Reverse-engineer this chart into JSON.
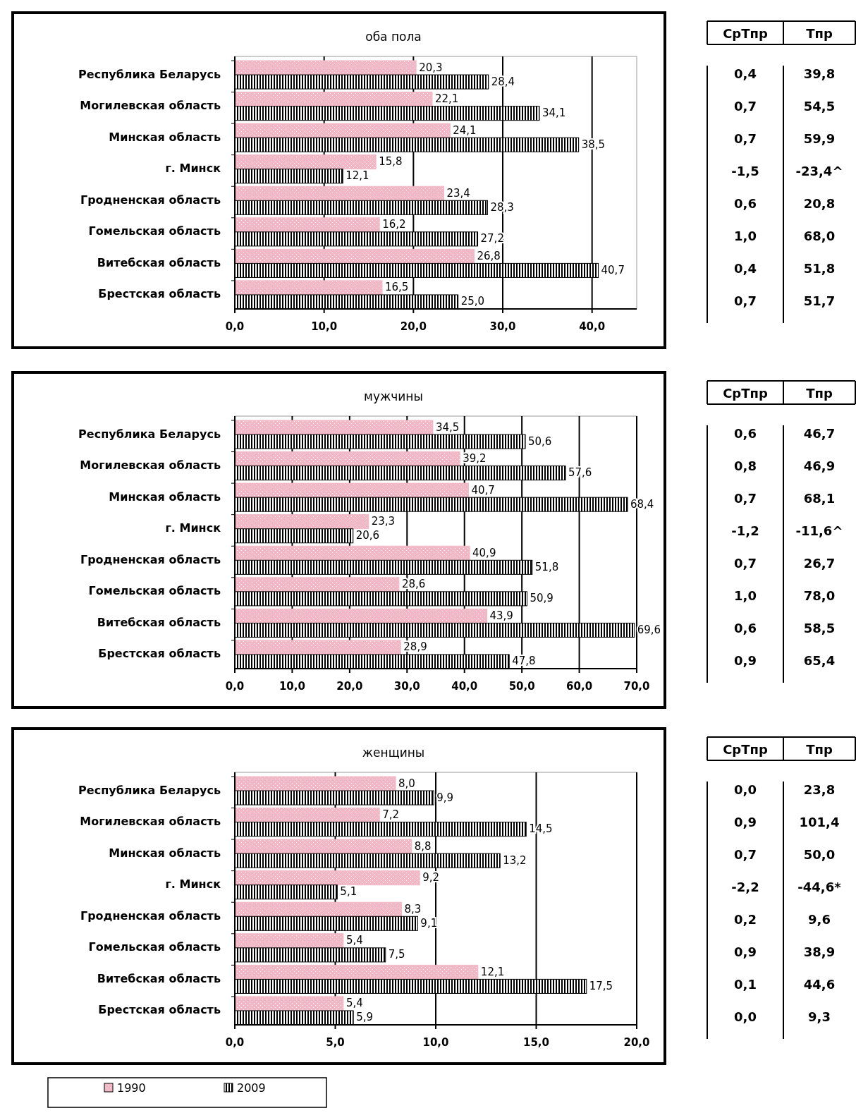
{
  "chart_data": [
    {
      "type": "bar",
      "orientation": "horizontal",
      "title": "оба пола",
      "categories": [
        "Республика Беларусь",
        "Могилевская область",
        "Минская область",
        "г. Минск",
        "Гродненская область",
        "Гомельская область",
        "Витебская область",
        "Брестская область"
      ],
      "series": [
        {
          "color": "#f2b8c6",
          "values": [
            20.3,
            22.1,
            24.1,
            15.8,
            23.4,
            16.2,
            26.8,
            16.5
          ],
          "value_labels": [
            "20,3",
            "22,1",
            "24,1",
            "15,8",
            "23,4",
            "16,2",
            "26,8",
            "16,5"
          ]
        },
        {
          "color": "#000000",
          "values": [
            28.4,
            34.1,
            38.5,
            12.1,
            28.3,
            27.2,
            40.7,
            25.0
          ],
          "value_labels": [
            "28,4",
            "34,1",
            "38,5",
            "12,1",
            "28,3",
            "27,2",
            "40,7",
            "25,0"
          ]
        }
      ],
      "xlim": [
        0,
        45
      ],
      "xticks": [
        {
          "value": 0,
          "label": "0,0"
        },
        {
          "value": 10,
          "label": "10,0"
        },
        {
          "value": 20,
          "label": "20,0"
        },
        {
          "value": 30,
          "label": "30,0"
        },
        {
          "value": 40,
          "label": "40,0"
        }
      ],
      "grid": "x",
      "legend": false
    },
    {
      "type": "other",
      "annotations": [
        "СрТпр",
        "Тпр",
        "0,4",
        "39,8",
        "0,7",
        "54,5",
        "0,7",
        "59,9",
        "-1,5",
        "-23,4^",
        "0,6",
        "20,8",
        "1,0",
        "68,0",
        "0,4",
        "51,8",
        "0,7",
        "51,7"
      ]
    },
    {
      "type": "bar",
      "orientation": "horizontal",
      "title": "мужчины",
      "categories": [
        "Республика Беларусь",
        "Могилевская область",
        "Минская область",
        "г. Минск",
        "Гродненская область",
        "Гомельская область",
        "Витебская область",
        "Брестская область"
      ],
      "series": [
        {
          "color": "#f2b8c6",
          "values": [
            34.5,
            39.2,
            40.7,
            23.3,
            40.9,
            28.6,
            43.9,
            28.9
          ],
          "value_labels": [
            "34,5",
            "39,2",
            "40,7",
            "23,3",
            "40,9",
            "28,6",
            "43,9",
            "28,9"
          ]
        },
        {
          "color": "#000000",
          "values": [
            50.6,
            57.6,
            68.4,
            20.6,
            51.8,
            50.9,
            69.6,
            47.8
          ],
          "value_labels": [
            "50,6",
            "57,6",
            "68,4",
            "20,6",
            "51,8",
            "50,9",
            "69,6",
            "47,8"
          ]
        }
      ],
      "xlim": [
        0,
        70
      ],
      "xticks": [
        {
          "value": 0,
          "label": "0,0"
        },
        {
          "value": 10,
          "label": "10,0"
        },
        {
          "value": 20,
          "label": "20,0"
        },
        {
          "value": 30,
          "label": "30,0"
        },
        {
          "value": 40,
          "label": "40,0"
        },
        {
          "value": 50,
          "label": "50,0"
        },
        {
          "value": 60,
          "label": "60,0"
        },
        {
          "value": 70,
          "label": "70,0"
        }
      ],
      "grid": "x",
      "legend": false
    },
    {
      "type": "other",
      "annotations": [
        "СрТпр",
        "Тпр",
        "0,6",
        "46,7",
        "0,8",
        "46,9",
        "0,7",
        "68,1",
        "-1,2",
        "-11,6^",
        "0,7",
        "26,7",
        "1,0",
        "78,0",
        "0,6",
        "58,5",
        "0,9",
        "65,4"
      ]
    },
    {
      "type": "bar",
      "orientation": "horizontal",
      "title": "женщины",
      "categories": [
        "Республика Беларусь",
        "Могилевская область",
        "Минская область",
        "г. Минск",
        "Гродненская область",
        "Гомельская область",
        "Витебская область",
        "Брестская область"
      ],
      "series": [
        {
          "name": "1990",
          "color": "#f2b8c6",
          "values": [
            8.0,
            7.2,
            8.8,
            9.2,
            8.3,
            5.4,
            12.1,
            5.4
          ],
          "value_labels": [
            "8,0",
            "7,2",
            "8,8",
            "9,2",
            "8,3",
            "5,4",
            "12,1",
            "5,4"
          ]
        },
        {
          "name": "2009",
          "color": "#000000",
          "values": [
            9.9,
            14.5,
            13.2,
            5.1,
            9.1,
            7.5,
            17.5,
            5.9
          ],
          "value_labels": [
            "9,9",
            "14,5",
            "13,2",
            "5,1",
            "9,1",
            "7,5",
            "17,5",
            "5,9"
          ]
        }
      ],
      "xlim": [
        0,
        20
      ],
      "xticks": [
        {
          "value": 0,
          "label": "0,0"
        },
        {
          "value": 5,
          "label": "5,0"
        },
        {
          "value": 10,
          "label": "10,0"
        },
        {
          "value": 15,
          "label": "15,0"
        },
        {
          "value": 20,
          "label": "20,0"
        }
      ],
      "grid": "x",
      "legend": "bottom left"
    },
    {
      "type": "other",
      "annotations": [
        "СрТпр",
        "Тпр",
        "0,0",
        "23,8",
        "0,9",
        "101,4",
        "0,7",
        "50,0",
        "-2,2",
        "-44,6*",
        "0,2",
        "9,6",
        "0,9",
        "38,9",
        "0,1",
        "44,6",
        "0,0",
        "9,3"
      ]
    }
  ]
}
